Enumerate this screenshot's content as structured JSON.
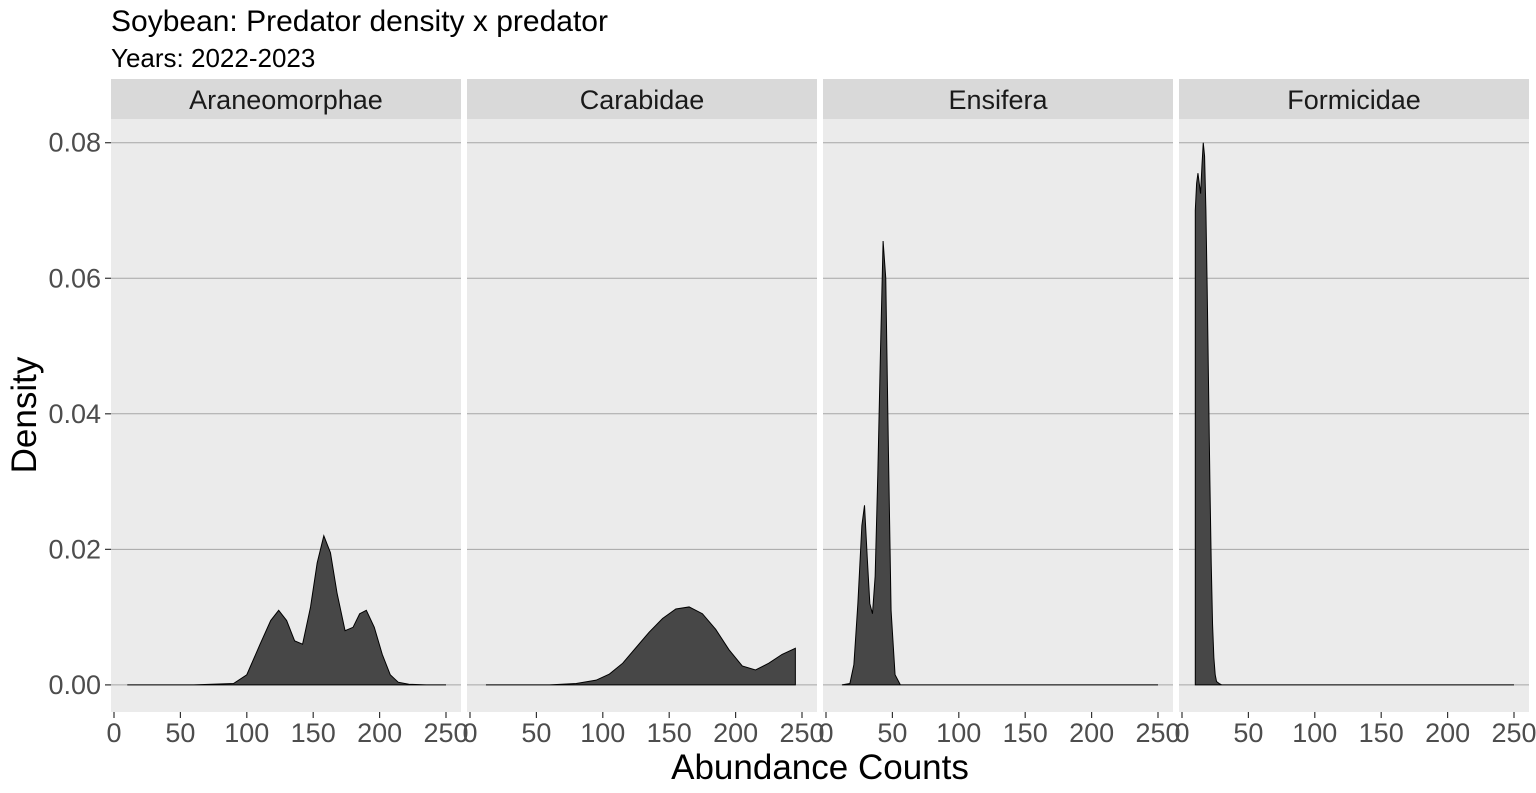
{
  "chart_data": {
    "type": "area",
    "title": "Soybean: Predator density x predator",
    "subtitle": "Years: 2022-2023",
    "xlabel": "Abundance Counts",
    "ylabel": "Density",
    "xlim": [
      0,
      255
    ],
    "ylim": [
      -0.004,
      0.0835
    ],
    "x_ticks": [
      0,
      50,
      100,
      150,
      200,
      250
    ],
    "x_tick_labels": [
      "0",
      "50",
      "100",
      "150",
      "200",
      "250"
    ],
    "y_ticks": [
      0.0,
      0.02,
      0.04,
      0.06,
      0.08
    ],
    "y_tick_labels": [
      "0.00",
      "0.02",
      "0.04",
      "0.06",
      "0.08"
    ],
    "grid": true,
    "fill_color": "#474747",
    "panel_color": "#ebebeb",
    "strip_color": "#d9d9d9",
    "gridline_color": "#a6a6a6",
    "facets": [
      {
        "name": "Araneomorphae",
        "x": [
          10,
          60,
          90,
          100,
          110,
          118,
          124,
          130,
          136,
          142,
          148,
          153,
          158,
          163,
          168,
          174,
          180,
          185,
          190,
          196,
          202,
          208,
          214,
          222,
          235,
          250
        ],
        "y": [
          0,
          0,
          0.0002,
          0.0015,
          0.006,
          0.0095,
          0.011,
          0.0095,
          0.0065,
          0.006,
          0.0115,
          0.018,
          0.022,
          0.0195,
          0.0135,
          0.008,
          0.0085,
          0.0105,
          0.011,
          0.0085,
          0.0045,
          0.0015,
          0.0004,
          0.0001,
          0,
          0
        ]
      },
      {
        "name": "Carabidae",
        "x": [
          12,
          60,
          80,
          95,
          105,
          115,
          125,
          135,
          145,
          155,
          165,
          175,
          185,
          195,
          205,
          215,
          225,
          235,
          245
        ],
        "y": [
          0,
          0,
          0.0002,
          0.0007,
          0.0016,
          0.0032,
          0.0055,
          0.0078,
          0.0098,
          0.0112,
          0.0115,
          0.0105,
          0.0082,
          0.0052,
          0.0028,
          0.0022,
          0.0032,
          0.0045,
          0.0054
        ]
      },
      {
        "name": "Ensifera",
        "x": [
          12,
          18,
          21,
          24,
          27,
          29,
          31,
          33,
          35,
          37,
          39,
          41,
          43,
          45,
          47,
          49,
          52,
          56,
          80,
          150,
          250
        ],
        "y": [
          0,
          0.0002,
          0.003,
          0.012,
          0.0235,
          0.0265,
          0.019,
          0.012,
          0.0105,
          0.016,
          0.031,
          0.049,
          0.0655,
          0.06,
          0.0345,
          0.011,
          0.0015,
          0,
          0,
          0,
          0
        ],
        "y_range": [
          0,
          0.0655
        ]
      },
      {
        "name": "Formicidae",
        "x": [
          10,
          11,
          12,
          13,
          14,
          15,
          16,
          17,
          18,
          19,
          20,
          21,
          22,
          23,
          24,
          25,
          26,
          28,
          30,
          35,
          60,
          150,
          250
        ],
        "y": [
          0.07,
          0.074,
          0.0755,
          0.074,
          0.0725,
          0.0765,
          0.08,
          0.078,
          0.07,
          0.058,
          0.044,
          0.03,
          0.018,
          0.009,
          0.004,
          0.0015,
          0.0005,
          0.0002,
          0,
          0,
          0,
          0,
          0
        ],
        "y_range": [
          0,
          0.08
        ]
      }
    ]
  }
}
